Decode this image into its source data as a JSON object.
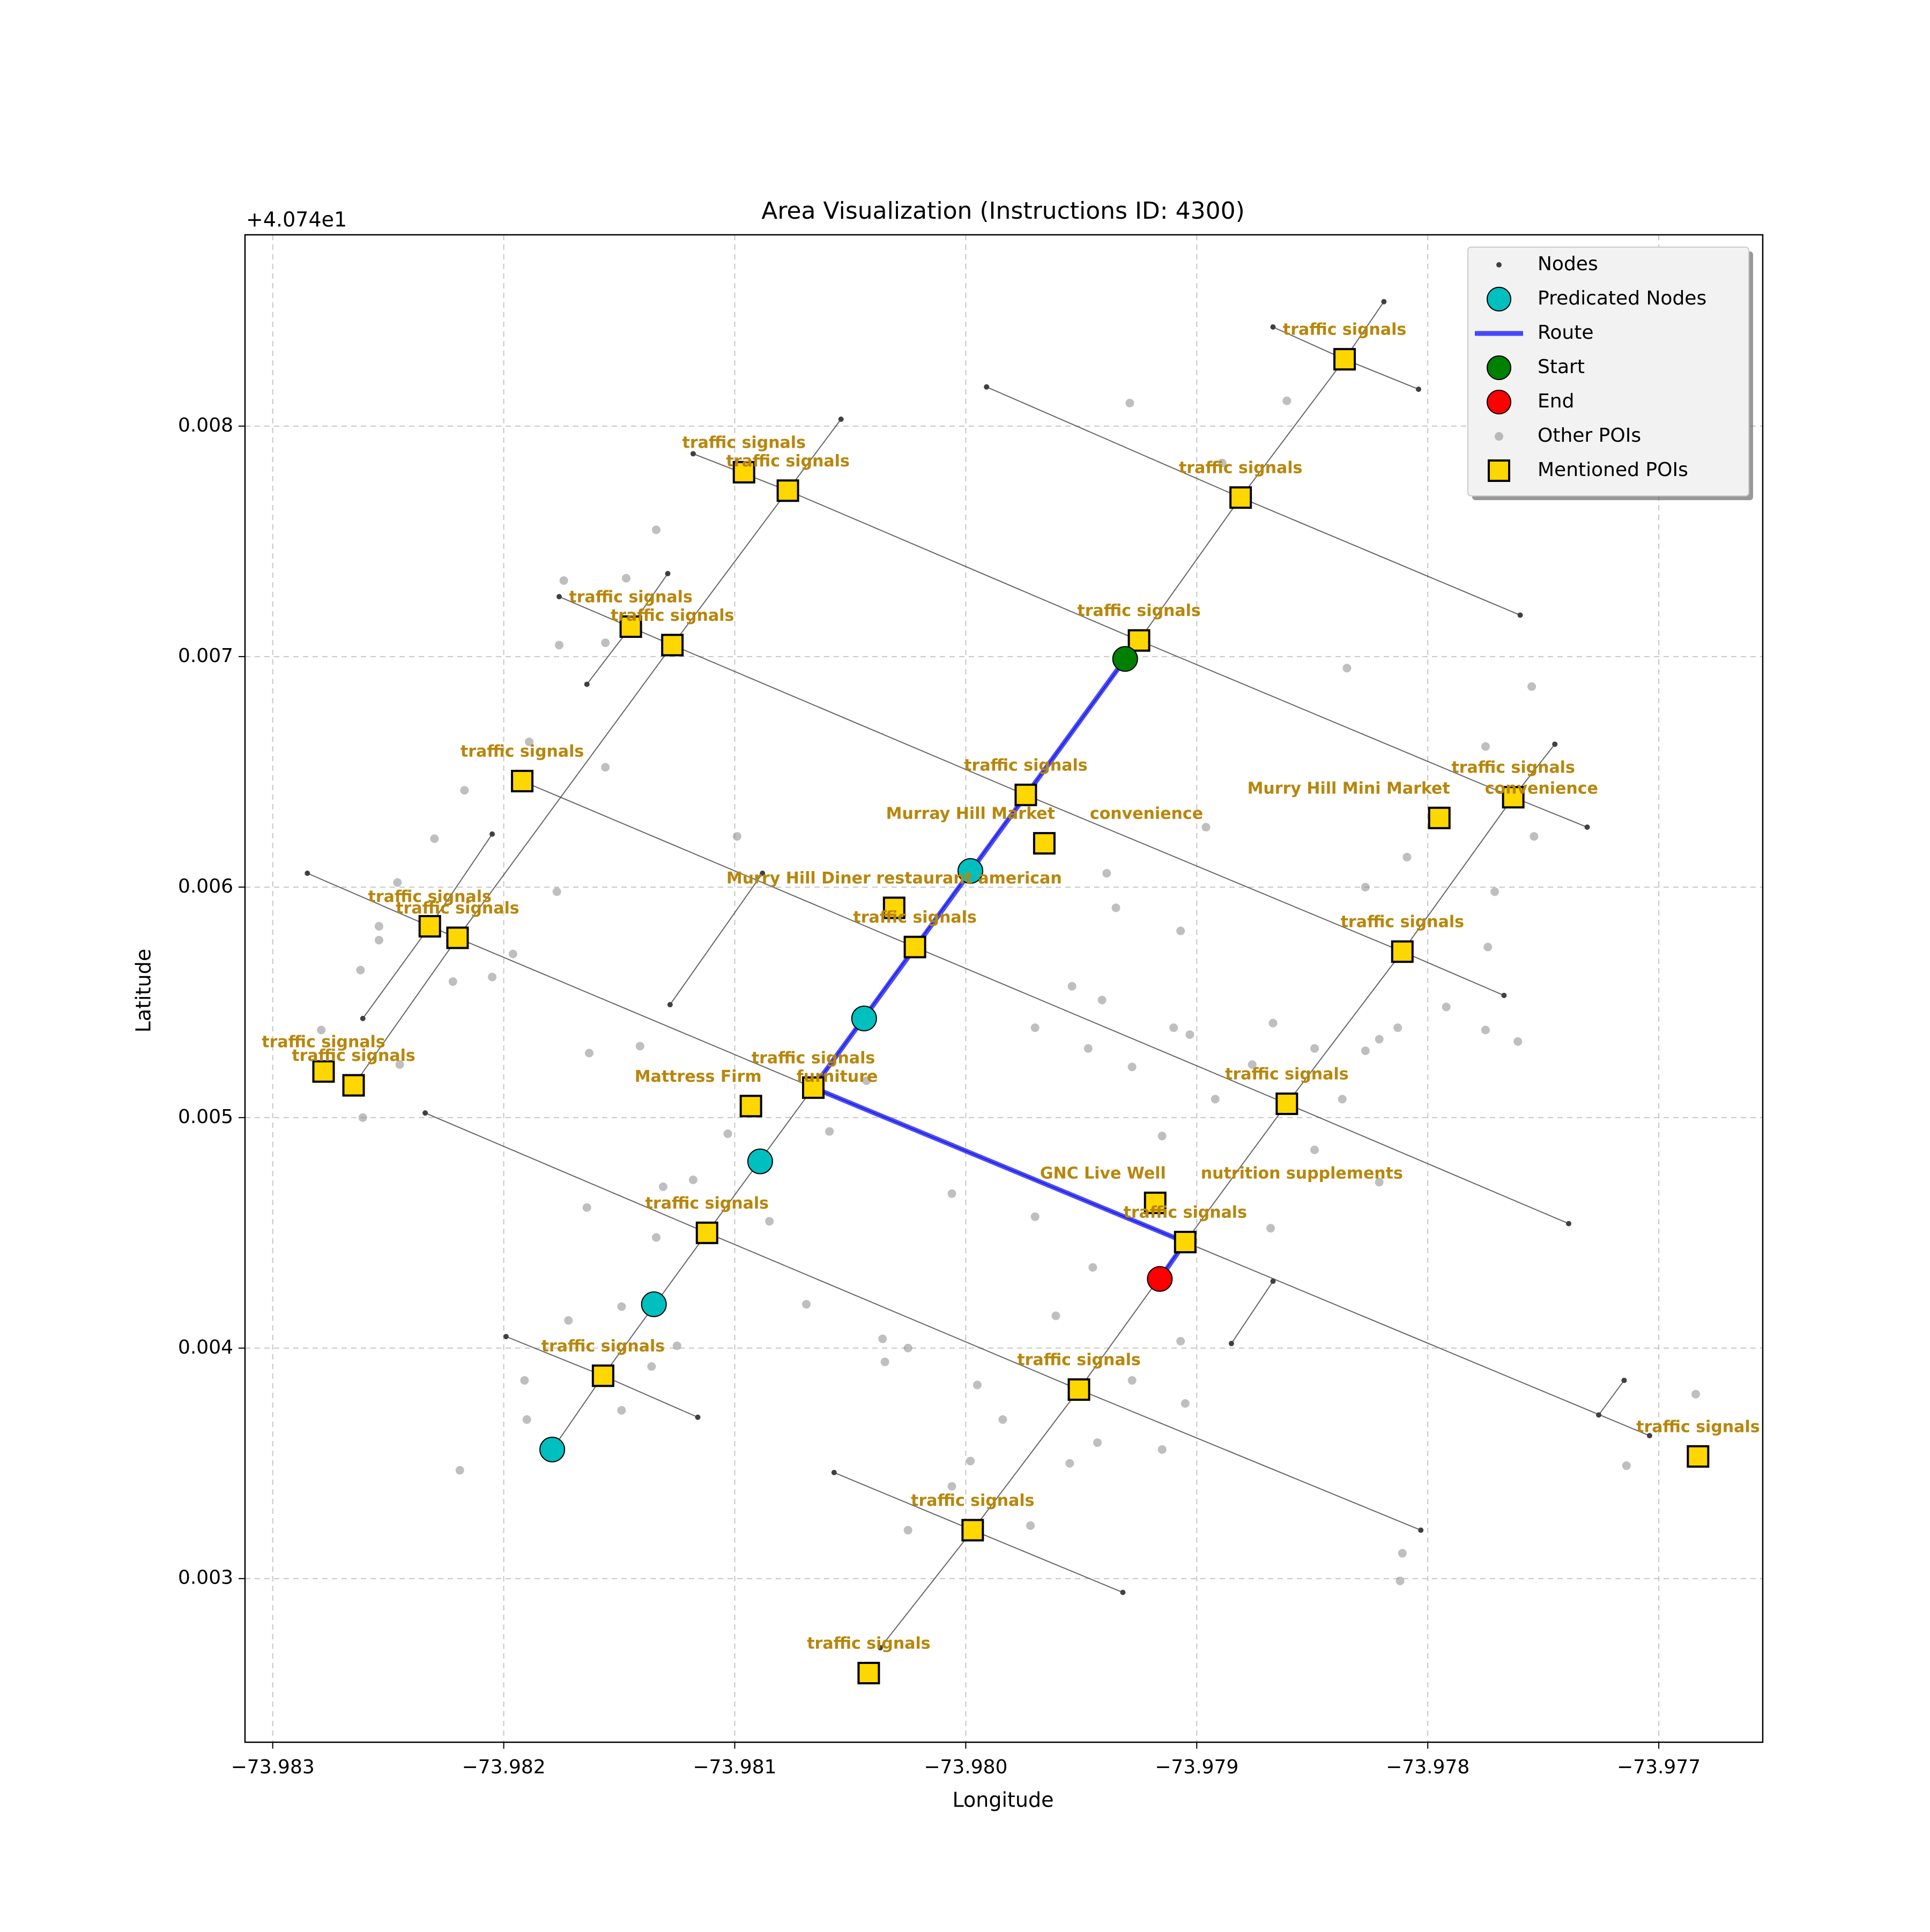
{
  "chart_data": {
    "type": "scatter",
    "title": "Area Visualization (Instructions ID: 4300)",
    "offset_text": "+4.074e1",
    "xlabel": "Longitude",
    "ylabel": "Latitude",
    "xlim": [
      -73.98312,
      -73.97655
    ],
    "ylim": [
      0.00229,
      0.00883
    ],
    "xticks": [
      {
        "value": -73.983,
        "label": "−73.983"
      },
      {
        "value": -73.982,
        "label": "−73.982"
      },
      {
        "value": -73.981,
        "label": "−73.981"
      },
      {
        "value": -73.98,
        "label": "−73.980"
      },
      {
        "value": -73.979,
        "label": "−73.979"
      },
      {
        "value": -73.978,
        "label": "−73.978"
      },
      {
        "value": -73.977,
        "label": "−73.977"
      }
    ],
    "yticks": [
      0.003,
      0.004,
      0.005,
      0.006,
      0.007,
      0.008
    ],
    "grid": true,
    "legend": "upper right",
    "label_color": "#b8860b",
    "series": [
      {
        "name": "Nodes",
        "color": "#404040",
        "marker": "dot",
        "roads": [
          {
            "x": [
              -73.98179,
              -73.98157,
              -73.98112,
              -73.98066,
              -73.98022,
              -73.97974,
              -73.97925,
              -73.97881,
              -73.97836,
              -73.97819
            ],
            "y": [
              0.00356,
              0.00388,
              0.0045,
              0.00513,
              0.00574,
              0.0064,
              0.00707,
              0.00769,
              0.00829,
              0.00854
            ]
          },
          {
            "x": [
              -73.98037,
              -73.97997,
              -73.97951,
              -73.97905,
              -73.97861,
              -73.97811,
              -73.97763,
              -73.97745
            ],
            "y": [
              0.0027,
              0.00321,
              0.00382,
              0.00446,
              0.00506,
              0.00572,
              0.00639,
              0.00662
            ]
          },
          {
            "x": [
              -73.98265,
              -73.9822,
              -73.98127,
              -73.98054
            ],
            "y": [
              0.00514,
              0.00578,
              0.00705,
              0.00803
            ]
          },
          {
            "x": [
              -73.98261,
              -73.98232,
              -73.98205
            ],
            "y": [
              0.00543,
              0.00583,
              0.00623
            ]
          },
          {
            "x": [
              -73.98164,
              -73.98145,
              -73.98129
            ],
            "y": [
              0.00688,
              0.00713,
              0.00736
            ]
          },
          {
            "x": [
              -73.98128,
              -73.98088
            ],
            "y": [
              0.00549,
              0.00606
            ]
          },
          {
            "x": [
              -73.97991,
              -73.97881,
              -73.9776
            ],
            "y": [
              0.00817,
              0.00769,
              0.00718
            ]
          },
          {
            "x": [
              -73.98118,
              -73.98077,
              -73.97925,
              -73.97763,
              -73.97731
            ],
            "y": [
              0.00788,
              0.00772,
              0.00707,
              0.00639,
              0.00626
            ]
          },
          {
            "x": [
              -73.98176,
              -73.98127,
              -73.97974,
              -73.97811,
              -73.97767
            ],
            "y": [
              0.00726,
              0.00705,
              0.0064,
              0.00572,
              0.00553
            ]
          },
          {
            "x": [
              -73.98192,
              -73.98022,
              -73.97861,
              -73.97739
            ],
            "y": [
              0.00646,
              0.00574,
              0.00506,
              0.00454
            ]
          },
          {
            "x": [
              -73.98285,
              -73.98232,
              -73.98066,
              -73.97905,
              -73.97704
            ],
            "y": [
              0.00606,
              0.00583,
              0.00513,
              0.00446,
              0.00362
            ]
          },
          {
            "x": [
              -73.97867,
              -73.97836,
              -73.97804
            ],
            "y": [
              0.00843,
              0.00829,
              0.00816
            ]
          },
          {
            "x": [
              -73.98234,
              -73.98112,
              -73.97951,
              -73.97803
            ],
            "y": [
              0.00502,
              0.0045,
              0.00382,
              0.00321
            ]
          },
          {
            "x": [
              -73.98199,
              -73.98157,
              -73.98116
            ],
            "y": [
              0.00405,
              0.00388,
              0.0037
            ]
          },
          {
            "x": [
              -73.98057,
              -73.97997,
              -73.97932
            ],
            "y": [
              0.00346,
              0.00321,
              0.00294
            ]
          },
          {
            "x": [
              -73.97885,
              -73.97867
            ],
            "y": [
              0.00402,
              0.00429
            ]
          },
          {
            "x": [
              -73.97726,
              -73.97715
            ],
            "y": [
              0.00371,
              0.00386
            ]
          }
        ]
      },
      {
        "name": "Predicated Nodes",
        "color": "#00bfbf",
        "marker": "circle",
        "x": [
          -73.98179,
          -73.98135,
          -73.98089,
          -73.98044,
          -73.97998
        ],
        "y": [
          0.00356,
          0.00419,
          0.00481,
          0.00543,
          0.00607
        ]
      },
      {
        "name": "Route",
        "color": "#0000ff",
        "marker": "line",
        "x": [
          -73.97931,
          -73.98066,
          -73.97905,
          -73.97916
        ],
        "y": [
          0.00699,
          0.00513,
          0.00446,
          0.0043
        ]
      },
      {
        "name": "Start",
        "color": "#008000",
        "marker": "circle",
        "x": [
          -73.97931
        ],
        "y": [
          0.00699
        ]
      },
      {
        "name": "End",
        "color": "#ff0000",
        "marker": "circle",
        "x": [
          -73.97916
        ],
        "y": [
          0.0043
        ]
      },
      {
        "name": "Other POIs",
        "color": "#808080",
        "marker": "dot",
        "x": [
          -73.97929,
          -73.97861,
          -73.97889,
          -73.98134,
          -73.98174,
          -73.98176,
          -73.98147,
          -73.98156,
          -73.98189,
          -73.98156,
          -73.98217,
          -73.9823,
          -73.98177,
          -73.98196,
          -73.98205,
          -73.98222,
          -73.98246,
          -73.98254,
          -73.98254,
          -73.98262,
          -73.98279,
          -73.98261,
          -73.98245,
          -73.98163,
          -73.98141,
          -73.98099,
          -73.98103,
          -73.98164,
          -73.98131,
          -73.98118,
          -73.98134,
          -73.98149,
          -73.98172,
          -73.98191,
          -73.9819,
          -73.98219,
          -73.98149,
          -73.98136,
          -73.98125,
          -73.98069,
          -73.98085,
          -73.98059,
          -73.98043,
          -73.98006,
          -73.9797,
          -73.97961,
          -73.97945,
          -73.98036,
          -73.98035,
          -73.98025,
          -73.97995,
          -73.97998,
          -73.97984,
          -73.98006,
          -73.98025,
          -73.97972,
          -73.97955,
          -73.97943,
          -73.97928,
          -73.97915,
          -73.97905,
          -73.97907,
          -73.97939,
          -73.97935,
          -73.97907,
          -73.97896,
          -73.9797,
          -73.97954,
          -73.97941,
          -73.97947,
          -73.97928,
          -73.9791,
          -73.97903,
          -73.97915,
          -73.97892,
          -73.97876,
          -73.97867,
          -73.97849,
          -73.97837,
          -73.97827,
          -73.97821,
          -73.97813,
          -73.97821,
          -73.97849,
          -73.97868,
          -73.97827,
          -73.97809,
          -73.97835,
          -73.97775,
          -73.97755,
          -73.97754,
          -73.97771,
          -73.97774,
          -73.97792,
          -73.97775,
          -73.97761,
          -73.97811,
          -73.97812,
          -73.97714,
          -73.97684
        ],
        "y": [
          0.0081,
          0.00811,
          0.00784,
          0.00755,
          0.00733,
          0.00705,
          0.00734,
          0.00706,
          0.00663,
          0.00652,
          0.00642,
          0.00621,
          0.00598,
          0.00571,
          0.00561,
          0.00559,
          0.00602,
          0.00583,
          0.00577,
          0.00564,
          0.00538,
          0.005,
          0.00523,
          0.00528,
          0.00531,
          0.00622,
          0.00493,
          0.00461,
          0.0047,
          0.00473,
          0.00448,
          0.00418,
          0.00412,
          0.00386,
          0.00369,
          0.00347,
          0.00373,
          0.00392,
          0.00401,
          0.00419,
          0.00455,
          0.00494,
          0.00516,
          0.00467,
          0.00457,
          0.00414,
          0.00435,
          0.00404,
          0.00394,
          0.004,
          0.00384,
          0.00351,
          0.00369,
          0.0034,
          0.00321,
          0.00323,
          0.0035,
          0.00359,
          0.00386,
          0.00356,
          0.00376,
          0.00403,
          0.00606,
          0.00591,
          0.00581,
          0.00626,
          0.00539,
          0.00557,
          0.00551,
          0.0053,
          0.00522,
          0.00539,
          0.00536,
          0.00492,
          0.00508,
          0.00523,
          0.00541,
          0.0053,
          0.00508,
          0.00529,
          0.00534,
          0.00539,
          0.00472,
          0.00486,
          0.00452,
          0.006,
          0.00613,
          0.00695,
          0.00661,
          0.00687,
          0.00622,
          0.00598,
          0.00574,
          0.00548,
          0.00538,
          0.00533,
          0.00311,
          0.00299,
          0.00349,
          0.0038
        ]
      },
      {
        "name": "Mentioned POIs",
        "color": "#ffd700",
        "marker": "square",
        "x": [
          -73.97836,
          -73.97881,
          -73.97925,
          -73.97974,
          -73.98096,
          -73.98077,
          -73.98145,
          -73.98127,
          -73.98192,
          -73.98232,
          -73.9822,
          -73.98278,
          -73.98265,
          -73.97763,
          -73.98022,
          -73.98066,
          -73.98112,
          -73.98157,
          -73.97951,
          -73.97997,
          -73.98042,
          -73.97905,
          -73.97861,
          -73.97811,
          -73.97683,
          -73.97966,
          -73.97795,
          -73.98031,
          -73.98093,
          -73.97918
        ],
        "y": [
          0.00829,
          0.00769,
          0.00707,
          0.0064,
          0.0078,
          0.00772,
          0.00713,
          0.00705,
          0.00646,
          0.00583,
          0.00578,
          0.0052,
          0.00514,
          0.00639,
          0.00574,
          0.00513,
          0.0045,
          0.00388,
          0.00382,
          0.00321,
          0.00259,
          0.00446,
          0.00506,
          0.00572,
          0.00353,
          0.00619,
          0.0063,
          0.00591,
          0.00505,
          0.00463
        ],
        "labels": [
          "traffic signals",
          "traffic signals",
          "traffic signals",
          "traffic signals",
          "traffic signals",
          "traffic signals",
          "traffic signals",
          "traffic signals",
          "traffic signals",
          "traffic signals",
          "traffic signals",
          "traffic signals",
          "traffic signals",
          "traffic signals",
          "traffic signals",
          "traffic signals",
          "traffic signals",
          "traffic signals",
          "traffic signals",
          "traffic signals",
          "traffic signals",
          "traffic signals",
          "traffic signals",
          "traffic signals",
          "traffic signals",
          "Murray Hill Market",
          "Murry Hill Mini Market",
          "Murry Hill Diner restaurant american",
          "Mattress Firm",
          "GNC Live Well"
        ],
        "sublabels": [
          null,
          null,
          null,
          null,
          null,
          null,
          null,
          null,
          null,
          null,
          null,
          null,
          null,
          null,
          null,
          null,
          null,
          null,
          null,
          null,
          null,
          null,
          null,
          null,
          null,
          "convenience",
          "convenience",
          null,
          "furniture",
          "nutrition supplements"
        ]
      }
    ]
  }
}
